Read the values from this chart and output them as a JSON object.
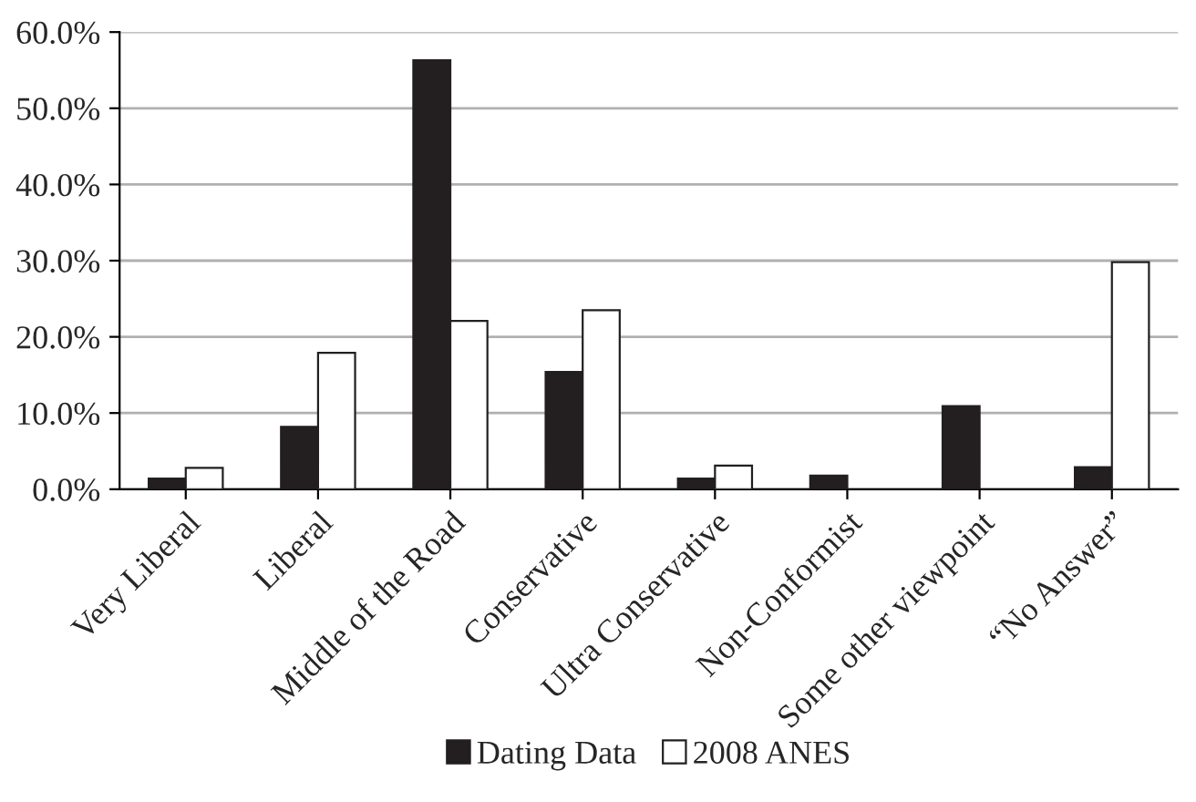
{
  "chart_data": {
    "type": "bar",
    "categories": [
      "Very Liberal",
      "Liberal",
      "Middle of the Road",
      "Conservative",
      "Ultra Conservative",
      "Non-Conformist",
      "Some other viewpoint",
      "“No Answer”"
    ],
    "series": [
      {
        "name": "Dating Data",
        "color": "#231f20",
        "values": [
          1.4,
          8.2,
          56.3,
          15.4,
          1.4,
          1.8,
          10.9,
          2.9
        ]
      },
      {
        "name": "2008 ANES",
        "color": "#ffffff",
        "values": [
          2.8,
          17.9,
          22.1,
          23.5,
          3.1,
          null,
          null,
          29.8
        ]
      }
    ],
    "ylim": [
      0,
      60
    ],
    "yticks": [
      {
        "value": 0,
        "label": "0.0%"
      },
      {
        "value": 10,
        "label": "10.0%"
      },
      {
        "value": 20,
        "label": "20.0%"
      },
      {
        "value": 30,
        "label": "30.0%"
      },
      {
        "value": 40,
        "label": "40.0%"
      },
      {
        "value": 50,
        "label": "50.0%"
      },
      {
        "value": 60,
        "label": "60.0%"
      }
    ],
    "grid": "y",
    "legend": "bottom"
  }
}
